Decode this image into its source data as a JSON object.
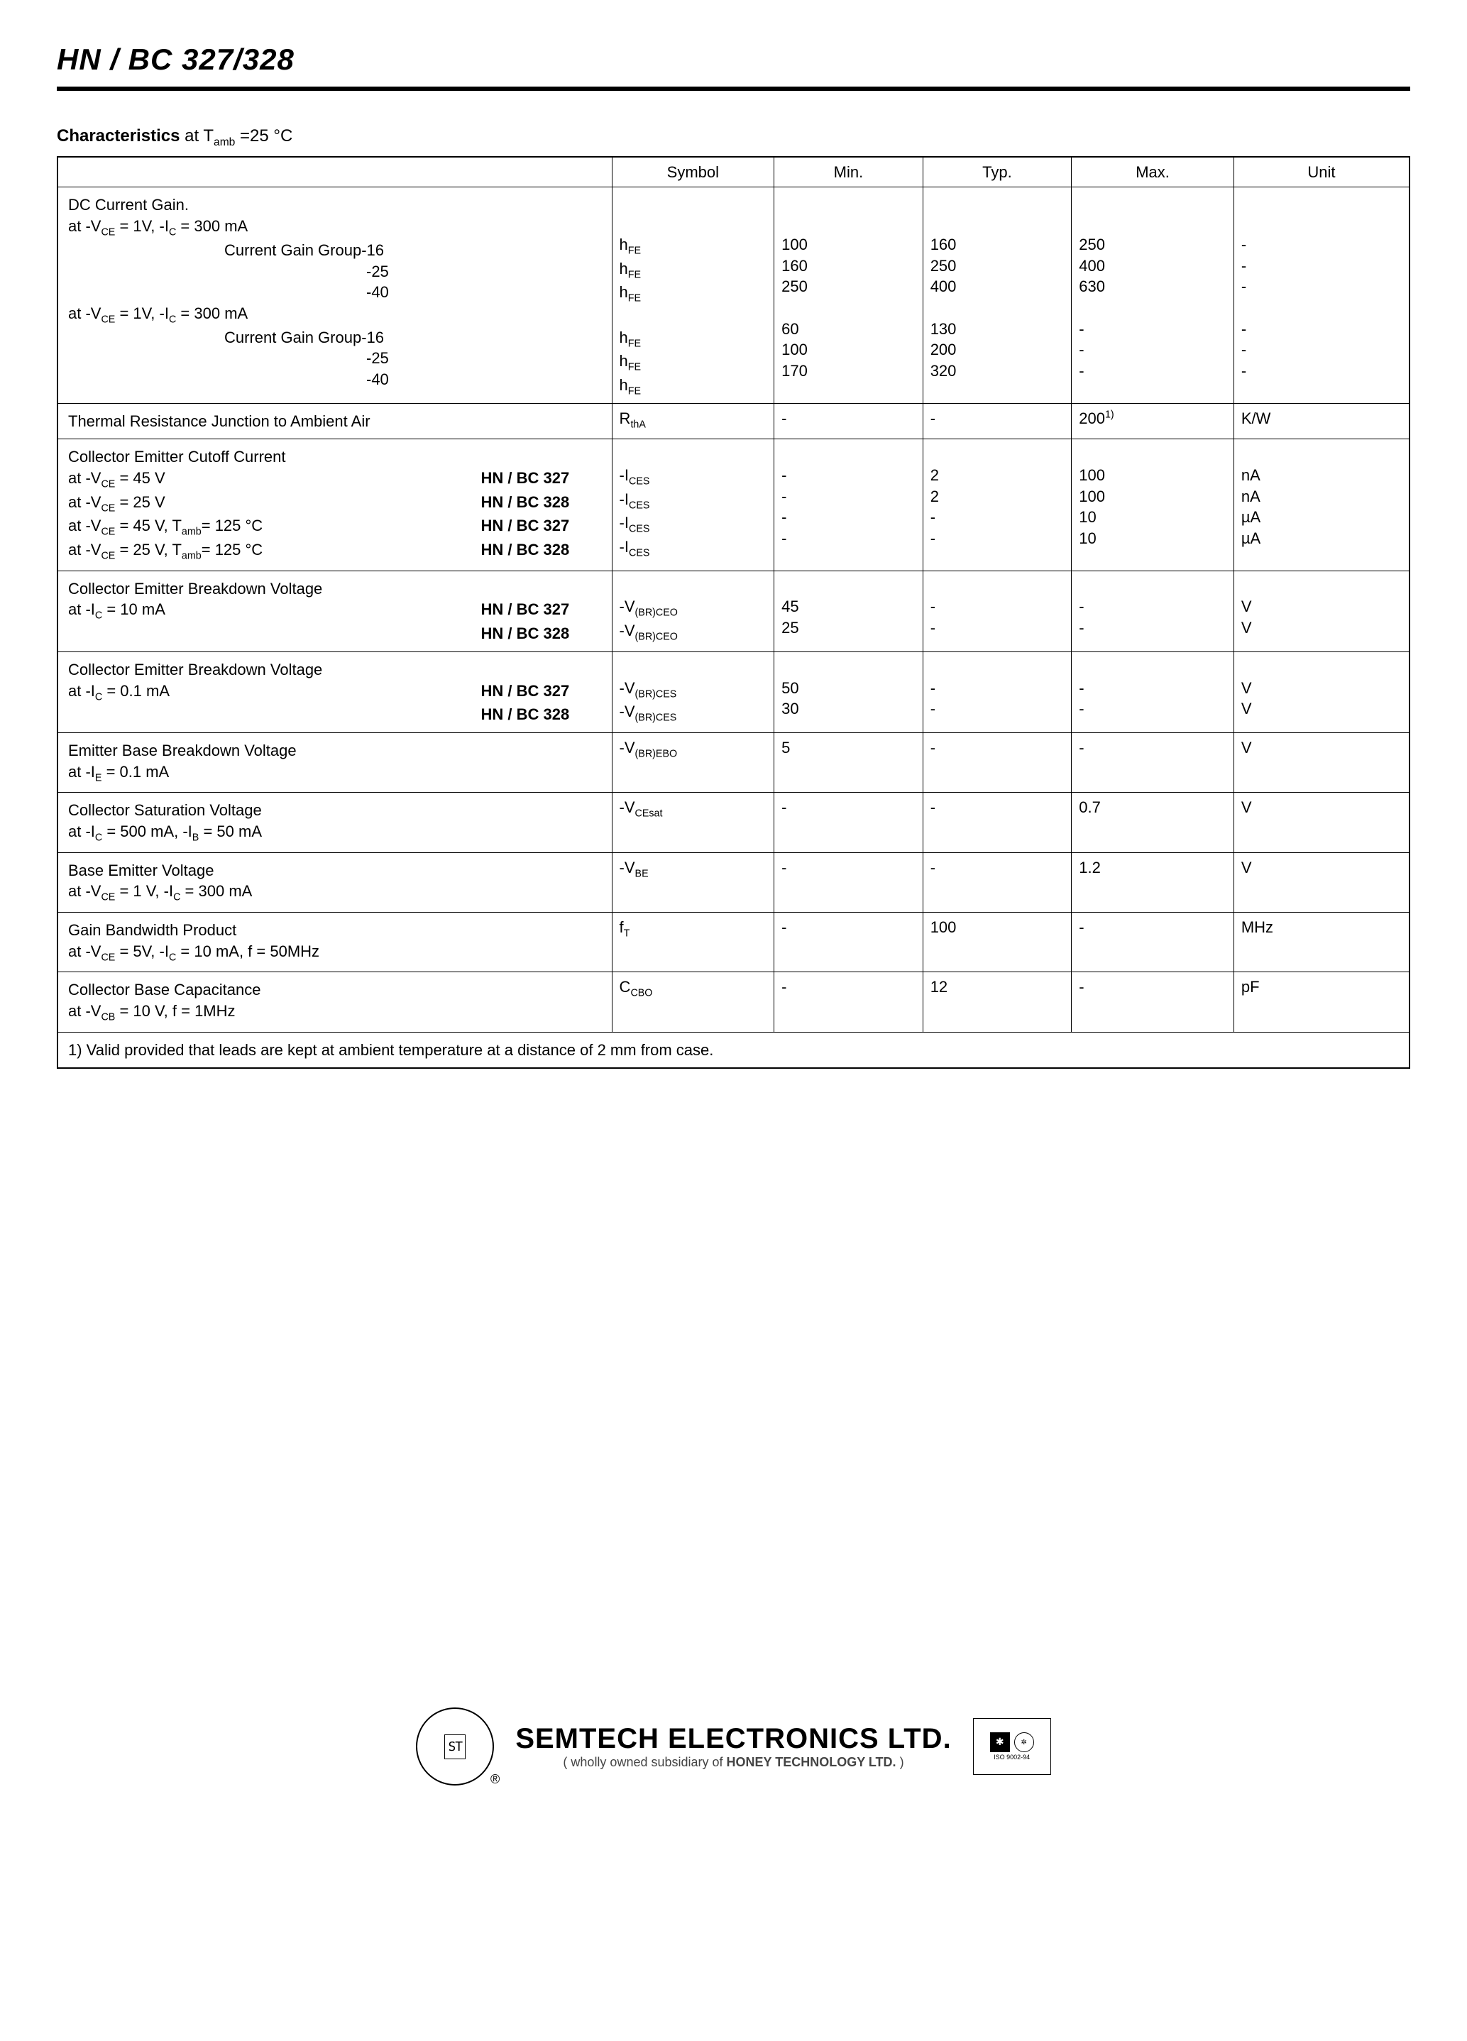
{
  "header": {
    "title": "HN / BC 327/328"
  },
  "section": {
    "label_bold": "Characteristics",
    "label_rest": " at T",
    "label_sub": "amb",
    "label_tail": " =25 °C"
  },
  "table": {
    "columns": [
      "Symbol",
      "Min.",
      "Typ.",
      "Max.",
      "Unit"
    ],
    "col_widths_pct": [
      41,
      12,
      11,
      11,
      12,
      13
    ],
    "rows": [
      {
        "desc_lines": [
          {
            "c1": "DC Current Gain."
          },
          {
            "c1": "at -V<sub>CE</sub> = 1V, -I<sub>C</sub> = 300 mA"
          },
          {
            "c1": "<span class='indent1'>Current Gain Group-16</span>"
          },
          {
            "c1": "<span class='indent1' style='padding-left:420px'>-25</span>"
          },
          {
            "c1": "<span class='indent1' style='padding-left:420px'>-40</span>"
          },
          {
            "c1": "at -V<sub>CE</sub> = 1V, -I<sub>C</sub> = 300 mA"
          },
          {
            "c1": "<span class='indent1'>Current Gain Group-16</span>"
          },
          {
            "c1": "<span class='indent1' style='padding-left:420px'>-25</span>"
          },
          {
            "c1": "<span class='indent1' style='padding-left:420px'>-40</span>"
          }
        ],
        "symbol": [
          "&nbsp;",
          "&nbsp;",
          "h<sub>FE</sub>",
          "h<sub>FE</sub>",
          "h<sub>FE</sub>",
          "&nbsp;",
          "h<sub>FE</sub>",
          "h<sub>FE</sub>",
          "h<sub>FE</sub>"
        ],
        "min": [
          "",
          "",
          "100",
          "160",
          "250",
          "",
          "60",
          "100",
          "170"
        ],
        "typ": [
          "",
          "",
          "160",
          "250",
          "400",
          "",
          "130",
          "200",
          "320"
        ],
        "max": [
          "",
          "",
          "250",
          "400",
          "630",
          "",
          "-",
          "-",
          "-"
        ],
        "unit": [
          "",
          "",
          "-",
          "-",
          "-",
          "",
          "-",
          "-",
          "-"
        ]
      },
      {
        "desc_lines": [
          {
            "c1": "Thermal Resistance Junction to Ambient Air"
          }
        ],
        "symbol": [
          "R<sub>thA</sub>"
        ],
        "min": [
          "-"
        ],
        "typ": [
          "-"
        ],
        "max": [
          "200<sup>1)</sup>"
        ],
        "unit": [
          "K/W"
        ]
      },
      {
        "desc_lines": [
          {
            "c1": "Collector Emitter Cutoff Current"
          },
          {
            "c1": "at -V<sub>CE</sub> = 45 V",
            "c2": "HN / BC 327"
          },
          {
            "c1": "at -V<sub>CE</sub> = 25 V",
            "c2": "HN / BC 328"
          },
          {
            "c1": "at -V<sub>CE</sub> = 45 V, T<sub>amb</sub>= 125 °C",
            "c2": "HN / BC 327"
          },
          {
            "c1": "at -V<sub>CE</sub> = 25 V, T<sub>amb</sub>= 125 °C",
            "c2": "HN / BC 328"
          }
        ],
        "symbol": [
          "&nbsp;",
          "-I<sub>CES</sub>",
          "-I<sub>CES</sub>",
          "-I<sub>CES</sub>",
          "-I<sub>CES</sub>"
        ],
        "min": [
          "",
          "-",
          "-",
          "-",
          "-"
        ],
        "typ": [
          "",
          "2",
          "2",
          "-",
          "-"
        ],
        "max": [
          "",
          "100",
          "100",
          "10",
          "10"
        ],
        "unit": [
          "",
          "nA",
          "nA",
          "µA",
          "µA"
        ]
      },
      {
        "desc_lines": [
          {
            "c1": "Collector Emitter Breakdown Voltage"
          },
          {
            "c1": "at -I<sub>C</sub> = 10 mA",
            "c2": "HN / BC 327"
          },
          {
            "c1": "",
            "c2": "HN / BC 328"
          }
        ],
        "symbol": [
          "&nbsp;",
          "-V<sub>(BR)CEO</sub>",
          "-V<sub>(BR)CEO</sub>"
        ],
        "min": [
          "",
          "45",
          "25"
        ],
        "typ": [
          "",
          "-",
          "-"
        ],
        "max": [
          "",
          "-",
          "-"
        ],
        "unit": [
          "",
          "V",
          "V"
        ]
      },
      {
        "desc_lines": [
          {
            "c1": "Collector Emitter Breakdown Voltage"
          },
          {
            "c1": "at -I<sub>C</sub> = 0.1 mA",
            "c2": "HN / BC 327"
          },
          {
            "c1": "",
            "c2": "HN / BC 328"
          }
        ],
        "symbol": [
          "&nbsp;",
          "-V<sub>(BR)CES</sub>",
          "-V<sub>(BR)CES</sub>"
        ],
        "min": [
          "",
          "50",
          "30"
        ],
        "typ": [
          "",
          "-",
          "-"
        ],
        "max": [
          "",
          "-",
          "-"
        ],
        "unit": [
          "",
          "V",
          "V"
        ]
      },
      {
        "desc_lines": [
          {
            "c1": "Emitter Base Breakdown Voltage"
          },
          {
            "c1": "at -I<sub>E</sub> = 0.1 mA"
          }
        ],
        "symbol": [
          "-V<sub>(BR)EBO</sub>",
          "&nbsp;"
        ],
        "min": [
          "5",
          ""
        ],
        "typ": [
          "-",
          ""
        ],
        "max": [
          "-",
          ""
        ],
        "unit": [
          "V",
          ""
        ]
      },
      {
        "desc_lines": [
          {
            "c1": "Collector Saturation Voltage"
          },
          {
            "c1": "at -I<sub>C</sub> = 500 mA, -I<sub>B</sub> = 50 mA"
          }
        ],
        "symbol": [
          "-V<sub>CEsat</sub>",
          "&nbsp;"
        ],
        "min": [
          "-",
          ""
        ],
        "typ": [
          "-",
          ""
        ],
        "max": [
          "0.7",
          ""
        ],
        "unit": [
          "V",
          ""
        ]
      },
      {
        "desc_lines": [
          {
            "c1": "Base Emitter Voltage"
          },
          {
            "c1": "at -V<sub>CE</sub> = 1 V, -I<sub>C</sub> = 300 mA"
          }
        ],
        "symbol": [
          "-V<sub>BE</sub>",
          "&nbsp;"
        ],
        "min": [
          "-",
          ""
        ],
        "typ": [
          "-",
          ""
        ],
        "max": [
          "1.2",
          ""
        ],
        "unit": [
          "V",
          ""
        ]
      },
      {
        "desc_lines": [
          {
            "c1": "Gain Bandwidth Product"
          },
          {
            "c1": "at -V<sub>CE</sub> = 5V, -I<sub>C</sub> = 10 mA, f = 50MHz"
          }
        ],
        "symbol": [
          "f<sub>T</sub>",
          "&nbsp;"
        ],
        "min": [
          "-",
          ""
        ],
        "typ": [
          "100",
          ""
        ],
        "max": [
          "-",
          ""
        ],
        "unit": [
          "MHz",
          ""
        ]
      },
      {
        "desc_lines": [
          {
            "c1": "Collector Base Capacitance"
          },
          {
            "c1": "at -V<sub>CB</sub> = 10 V, f = 1MHz"
          }
        ],
        "symbol": [
          "C<sub>CBO</sub>",
          "&nbsp;"
        ],
        "min": [
          "-",
          ""
        ],
        "typ": [
          "12",
          ""
        ],
        "max": [
          "-",
          ""
        ],
        "unit": [
          "pF",
          ""
        ]
      }
    ],
    "footnote": "1) Valid provided that leads are kept at ambient temperature at a distance of 2 mm from case."
  },
  "footer": {
    "company": "SEMTECH ELECTRONICS LTD.",
    "subsidiary_prefix": "(  wholly owned subsidiary of  ",
    "subsidiary_name": "HONEY TECHNOLOGY LTD.",
    "subsidiary_suffix": " )",
    "logo_text": "ST",
    "cert_text": "ISO 9002-94"
  }
}
